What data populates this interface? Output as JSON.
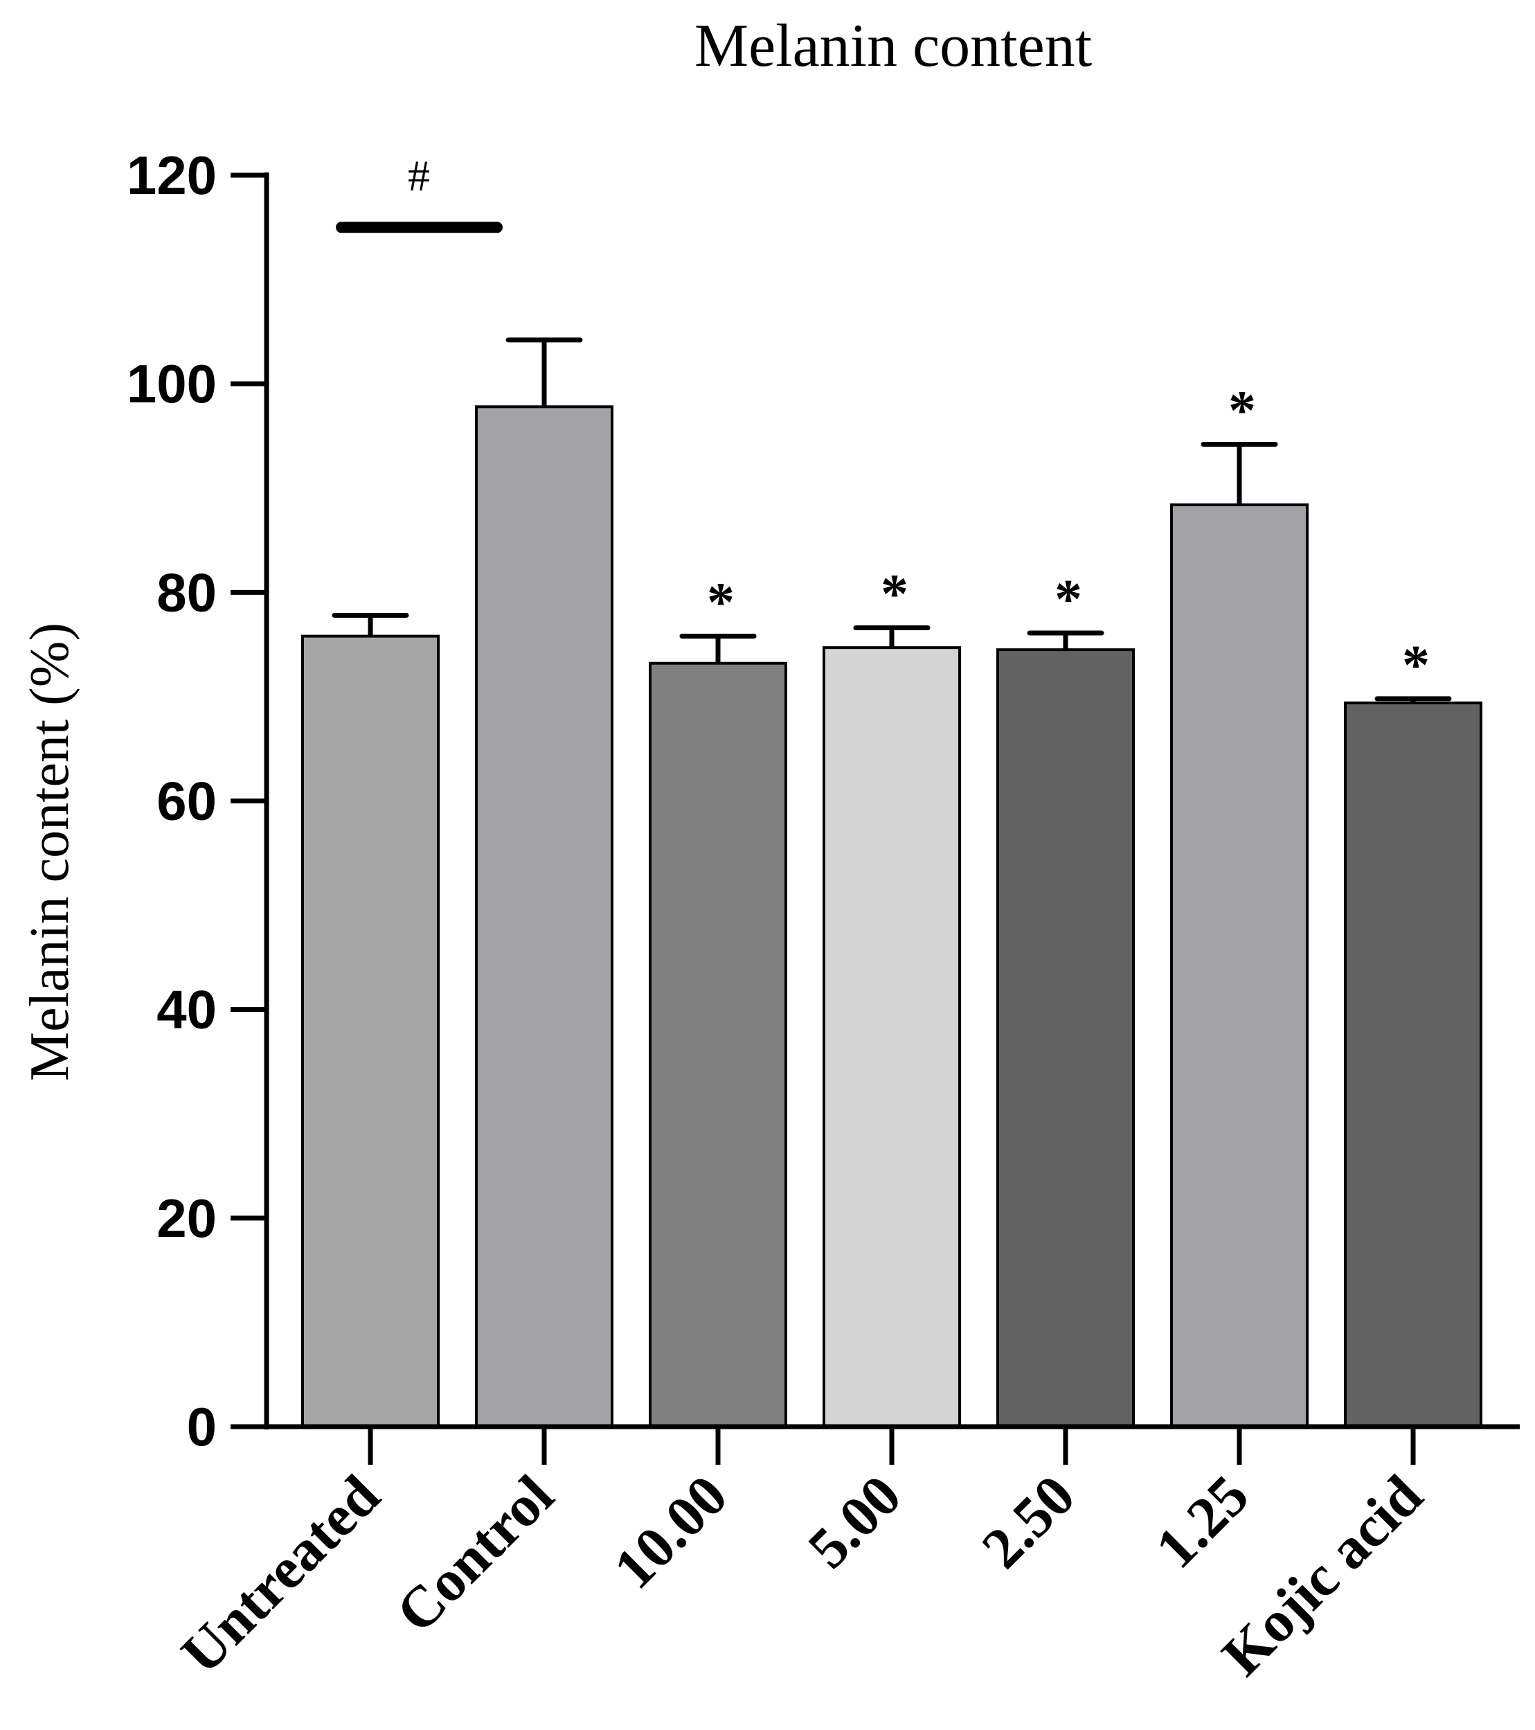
{
  "chart_data": {
    "type": "bar",
    "title": "Melanin content",
    "xlabel": "",
    "ylabel": "Melanin content (%)",
    "ylim": [
      0,
      120
    ],
    "yticks": [
      "0",
      "20",
      "40",
      "60",
      "80",
      "100",
      "120"
    ],
    "grid": false,
    "categories": [
      "Untreated",
      "Control",
      "10.00",
      "5.00",
      "2.50",
      "1.25",
      "Kojic acid"
    ],
    "values": [
      75.8,
      97.8,
      73.2,
      74.7,
      74.5,
      88.4,
      69.4
    ],
    "errors": [
      2.0,
      6.4,
      2.6,
      1.9,
      1.6,
      5.8,
      0.4
    ],
    "colors": [
      "#a6a6a6",
      "#a2a2a6",
      "#808080",
      "#d4d4d4",
      "#626262",
      "#a2a2a6",
      "#626262"
    ],
    "significance_marks": [
      "",
      "",
      "*",
      "*",
      "*",
      "*",
      "*"
    ],
    "comparison": {
      "symbol": "#",
      "y": 115
    }
  }
}
